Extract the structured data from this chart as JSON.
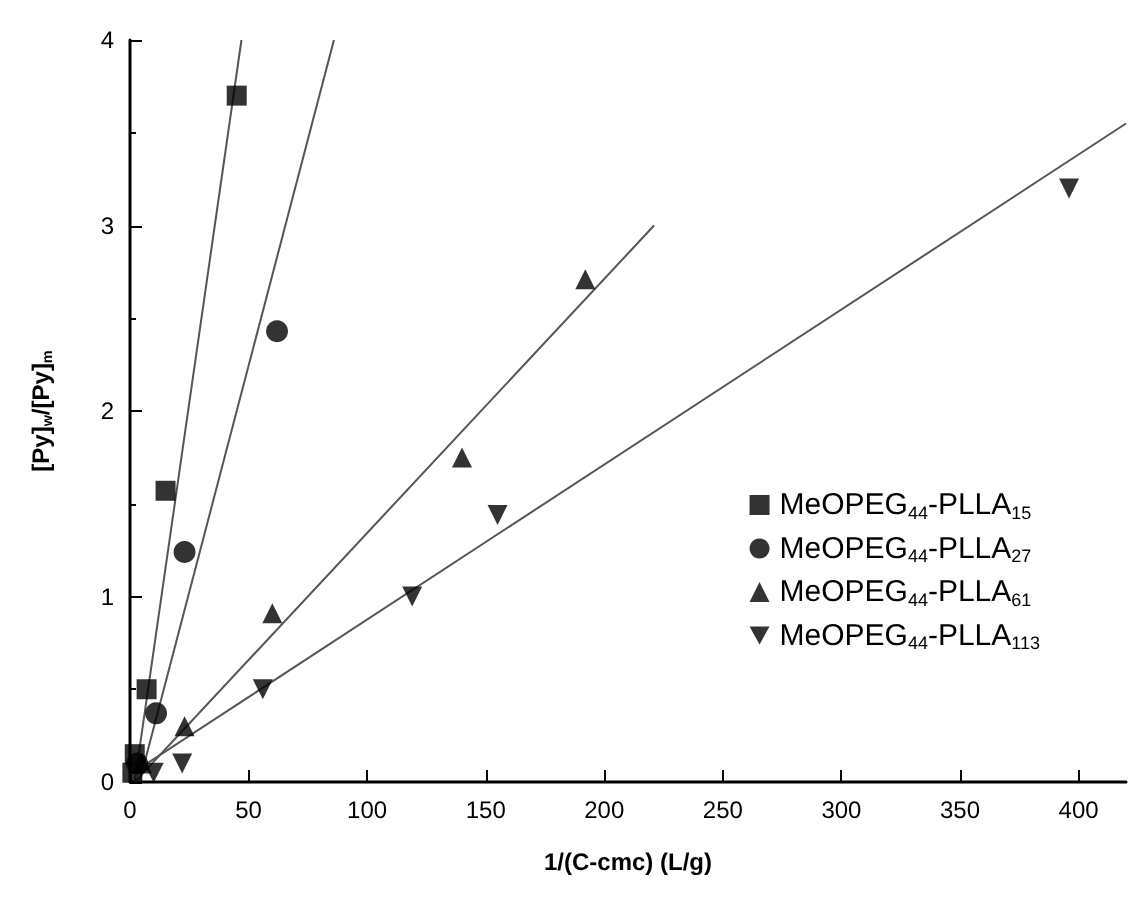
{
  "chart_data": {
    "type": "scatter",
    "xlabel": "1/(C-cmc) (L/g)",
    "ylabel": "[Py]$_{w}$/[Py]$_{m}$",
    "xlim": [
      0,
      420
    ],
    "ylim": [
      0,
      4
    ],
    "xticks": [
      0,
      50,
      100,
      150,
      200,
      250,
      300,
      350,
      400
    ],
    "yticks": [
      0,
      1,
      2,
      3,
      4
    ],
    "grid": false,
    "legend": "right",
    "series": [
      {
        "name": "MeOPEG$_{44}$-PLLA$_{15}$",
        "color": "#000000",
        "marker": "square",
        "x": [
          1,
          2,
          7,
          15,
          45
        ],
        "values": [
          0.05,
          0.15,
          0.5,
          1.57,
          3.7
        ]
      },
      {
        "name": "MeOPEG$_{44}$-PLLA$_{27}$",
        "color": "#000000",
        "marker": "circle",
        "x": [
          3,
          11,
          23,
          62
        ],
        "values": [
          0.1,
          0.37,
          1.24,
          2.43
        ]
      },
      {
        "name": "MeOPEG$_{44}$-PLLA$_{61}$",
        "color": "#000000",
        "marker": "triangle",
        "x": [
          5,
          23,
          60,
          140,
          192
        ],
        "values": [
          0.1,
          0.3,
          0.91,
          1.75,
          2.71
        ]
      },
      {
        "name": "MeOPEG$_{44}$-PLLA$_{113}$",
        "color": "#000000",
        "marker": "triangle-down",
        "x": [
          10,
          22,
          56,
          119,
          155,
          396
        ],
        "values": [
          0.05,
          0.1,
          0.5,
          1.0,
          1.44,
          3.2
        ]
      },
      {
        "type": "line",
        "color": "#555555",
        "marker": "none",
        "x": [
          2,
          47
        ],
        "values": [
          0,
          4
        ]
      },
      {
        "type": "line",
        "color": "#555555",
        "marker": "none",
        "x": [
          4,
          86
        ],
        "values": [
          0,
          4
        ]
      },
      {
        "type": "line",
        "color": "#555555",
        "marker": "none",
        "x": [
          2,
          221
        ],
        "values": [
          0,
          3
        ]
      },
      {
        "type": "line",
        "color": "#555555",
        "marker": "none",
        "x": [
          0,
          420
        ],
        "values": [
          0.04,
          3.55
        ]
      }
    ]
  }
}
